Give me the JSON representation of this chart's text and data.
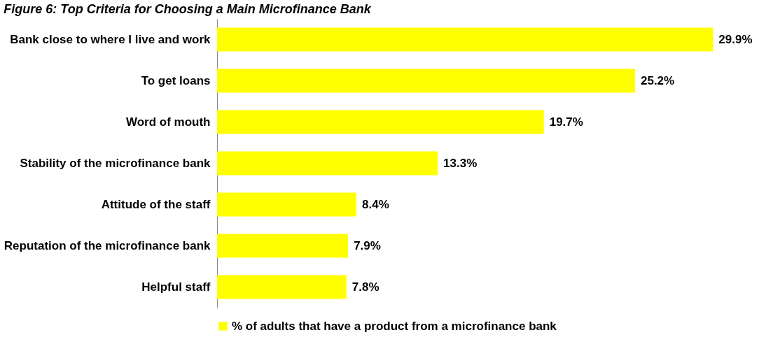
{
  "chart_data": {
    "type": "bar",
    "orientation": "horizontal",
    "title": "Figure 6: Top Criteria for Choosing a Main Microfinance Bank",
    "categories": [
      "Bank close to where I live and work",
      "To get loans",
      "Word of mouth",
      "Stability of the microfinance bank",
      "Attitude of the staff",
      "Reputation of the microfinance bank",
      "Helpful staff"
    ],
    "series": [
      {
        "name": "% of adults that have a product from a microfinance bank",
        "color": "#ffff00",
        "values": [
          29.9,
          25.2,
          19.7,
          13.3,
          8.4,
          7.9,
          7.8
        ],
        "value_labels": [
          "29.9%",
          "25.2%",
          "19.7%",
          "13.3%",
          "8.4%",
          "7.9%",
          "7.8%"
        ]
      }
    ],
    "legend": "bottom",
    "grid": false
  }
}
